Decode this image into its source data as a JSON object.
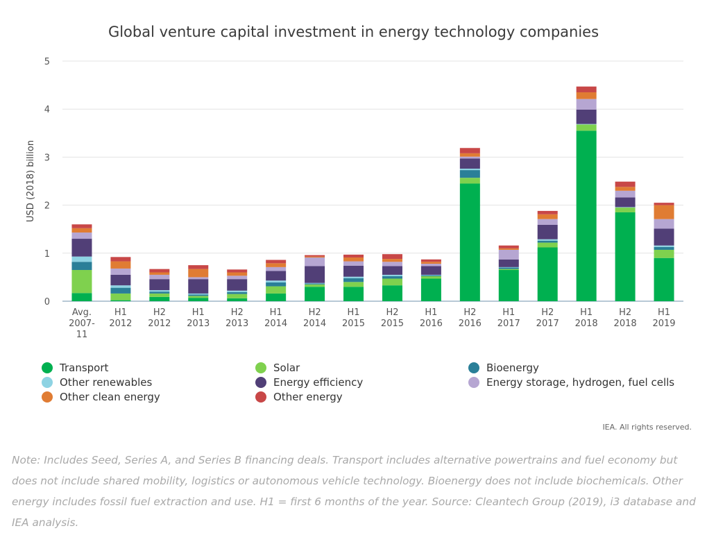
{
  "chart_data": {
    "type": "bar",
    "stacked": true,
    "title": "Global venture capital investment in energy technology companies",
    "ylabel": "USD (2018) billion",
    "xlabel": "",
    "ylim": [
      0,
      5
    ],
    "yticks": [
      "0",
      "1",
      "2",
      "3",
      "4",
      "5"
    ],
    "grid": true,
    "legend_position": "bottom",
    "categories": [
      [
        "Avg.",
        "2007-",
        "11"
      ],
      [
        "H1",
        "2012"
      ],
      [
        "H2",
        "2012"
      ],
      [
        "H1",
        "2013"
      ],
      [
        "H2",
        "2013"
      ],
      [
        "H1",
        "2014"
      ],
      [
        "H2",
        "2014"
      ],
      [
        "H1",
        "2015"
      ],
      [
        "H2",
        "2015"
      ],
      [
        "H1",
        "2016"
      ],
      [
        "H2",
        "2016"
      ],
      [
        "H1",
        "2017"
      ],
      [
        "H2",
        "2017"
      ],
      [
        "H1",
        "2018"
      ],
      [
        "H2",
        "2018"
      ],
      [
        "H1",
        "2019"
      ]
    ],
    "series": [
      {
        "name": "Transport",
        "color": "#00b050",
        "values": [
          0.17,
          0.02,
          0.09,
          0.07,
          0.06,
          0.16,
          0.3,
          0.3,
          0.33,
          0.47,
          2.45,
          0.65,
          1.12,
          3.55,
          1.85,
          0.9
        ]
      },
      {
        "name": "Solar",
        "color": "#7fd14e",
        "values": [
          0.48,
          0.14,
          0.07,
          0.04,
          0.09,
          0.15,
          0.05,
          0.1,
          0.14,
          0.05,
          0.12,
          0.02,
          0.1,
          0.13,
          0.1,
          0.17
        ]
      },
      {
        "name": "Bioenergy",
        "color": "#2a7f98",
        "values": [
          0.17,
          0.12,
          0.04,
          0.03,
          0.04,
          0.08,
          0.02,
          0.08,
          0.05,
          0.02,
          0.16,
          0.03,
          0.04,
          0.0,
          0.0,
          0.06
        ]
      },
      {
        "name": "Other renewables",
        "color": "#8ed3e3",
        "values": [
          0.11,
          0.05,
          0.03,
          0.02,
          0.03,
          0.04,
          0.01,
          0.03,
          0.03,
          0.01,
          0.03,
          0.01,
          0.03,
          0.01,
          0.01,
          0.03
        ]
      },
      {
        "name": "Energy efficiency",
        "color": "#513f77",
        "values": [
          0.37,
          0.22,
          0.23,
          0.3,
          0.24,
          0.2,
          0.35,
          0.23,
          0.18,
          0.18,
          0.21,
          0.16,
          0.3,
          0.3,
          0.2,
          0.35
        ]
      },
      {
        "name": "Energy storage, hydrogen, fuel cells",
        "color": "#b6a6d2",
        "values": [
          0.13,
          0.13,
          0.09,
          0.04,
          0.07,
          0.08,
          0.18,
          0.09,
          0.09,
          0.05,
          0.04,
          0.2,
          0.12,
          0.22,
          0.14,
          0.2
        ]
      },
      {
        "name": "Other clean energy",
        "color": "#e07c33",
        "values": [
          0.09,
          0.15,
          0.05,
          0.17,
          0.07,
          0.08,
          0.02,
          0.08,
          0.06,
          0.04,
          0.07,
          0.03,
          0.1,
          0.14,
          0.08,
          0.29
        ]
      },
      {
        "name": "Other energy",
        "color": "#c84747",
        "values": [
          0.08,
          0.09,
          0.07,
          0.08,
          0.06,
          0.07,
          0.03,
          0.06,
          0.1,
          0.05,
          0.11,
          0.06,
          0.07,
          0.12,
          0.11,
          0.05
        ]
      }
    ]
  },
  "legend": [
    "Transport",
    "Solar",
    "Bioenergy",
    "Other renewables",
    "Energy efficiency",
    "Energy storage, hydrogen, fuel cells",
    "Other clean energy",
    "Other energy"
  ],
  "rights_text": "IEA. All rights reserved.",
  "note_text": "Note: Includes Seed, Series A, and Series B financing deals. Transport includes alternative powertrains and fuel economy but does not include shared mobility, logistics or autonomous vehicle technology. Bioenergy does not include biochemicals. Other energy includes fossil fuel extraction and use. H1 = first 6 months of the year. Source: Cleantech Group (2019), i3 database and IEA analysis."
}
